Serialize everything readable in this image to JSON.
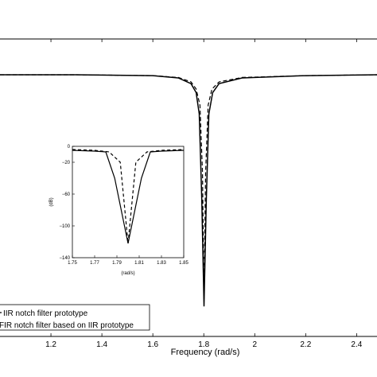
{
  "chart_data": [
    {
      "type": "line",
      "title": "",
      "xlabel": "Frequency  (rad/s)",
      "ylabel": "",
      "xlim": [
        1.0,
        2.48
      ],
      "ylim": [
        -140,
        5
      ],
      "xticks": [
        1.2,
        1.4,
        1.6,
        1.8,
        2,
        2.2,
        2.4
      ],
      "xtick_labels": [
        "1.2",
        "1.4",
        "1.6",
        "1.8",
        "2",
        "2.2",
        "2.4"
      ],
      "grid": false,
      "legend_position": "bottom-left",
      "series": [
        {
          "name": "IIR notch filter prototype",
          "style": "dashed",
          "color": "#000000",
          "x": [
            1.0,
            1.3,
            1.6,
            1.7,
            1.75,
            1.77,
            1.785,
            1.795,
            1.801,
            1.807,
            1.817,
            1.832,
            1.86,
            1.95,
            2.2,
            2.48
          ],
          "y": [
            0,
            0,
            -0.5,
            -1.5,
            -4,
            -8,
            -17,
            -55,
            -126,
            -55,
            -17,
            -8,
            -4,
            -1.5,
            -0.5,
            0
          ]
        },
        {
          "name": "FIR notch filter based on IIR prototype",
          "style": "solid",
          "color": "#000000",
          "x": [
            1.0,
            1.3,
            1.6,
            1.7,
            1.75,
            1.77,
            1.782,
            1.792,
            1.801,
            1.81,
            1.82,
            1.835,
            1.86,
            1.95,
            2.2,
            2.48
          ],
          "y": [
            0,
            0,
            -0.5,
            -1.8,
            -5,
            -10,
            -22,
            -70,
            -130,
            -70,
            -22,
            -10,
            -5,
            -1.8,
            -0.5,
            0
          ]
        }
      ]
    },
    {
      "type": "line",
      "title": "",
      "xlabel": "(rad/s)",
      "ylabel": "(dB)",
      "xlim": [
        1.75,
        1.85
      ],
      "ylim": [
        -140,
        0
      ],
      "xticks": [
        1.75,
        1.77,
        1.79,
        1.81,
        1.83,
        1.85
      ],
      "xtick_labels": [
        "1.75",
        "1.77",
        "1.79",
        "1.81",
        "1.83",
        "1.85"
      ],
      "yticks": [
        0,
        -20,
        -60,
        -100,
        -140
      ],
      "ytick_labels": [
        "0",
        "−20",
        "−60",
        "−100",
        "−140"
      ],
      "grid": false,
      "series": [
        {
          "name": "IIR notch filter prototype",
          "style": "dashed",
          "color": "#000000",
          "x": [
            1.75,
            1.77,
            1.783,
            1.793,
            1.8,
            1.807,
            1.817,
            1.83,
            1.85
          ],
          "y": [
            -4,
            -5,
            -7,
            -20,
            -122,
            -20,
            -7,
            -5,
            -4
          ]
        },
        {
          "name": "FIR notch filter based on IIR prototype",
          "style": "solid",
          "color": "#000000",
          "x": [
            1.75,
            1.77,
            1.78,
            1.788,
            1.8,
            1.812,
            1.82,
            1.83,
            1.85
          ],
          "y": [
            -5,
            -6,
            -7,
            -40,
            -122,
            -40,
            -7,
            -6,
            -5
          ]
        }
      ]
    }
  ],
  "legend": {
    "items": [
      {
        "label": "IIR notch filter prototype",
        "style": "dashed"
      },
      {
        "label": "FIR notch filter based on IIR prototype",
        "style": "solid"
      }
    ]
  }
}
